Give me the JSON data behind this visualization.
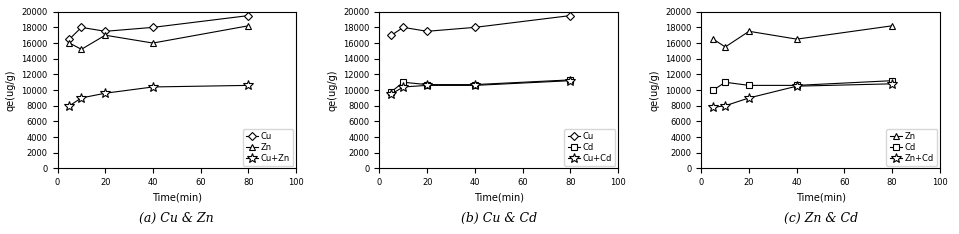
{
  "subplots": [
    {
      "caption": "(a) Cu & Zn",
      "xlabel": "Time(min)",
      "ylabel": "qe(ug/g)",
      "xlim": [
        0,
        100
      ],
      "ylim": [
        0,
        20000
      ],
      "yticks": [
        0,
        2000,
        4000,
        6000,
        8000,
        10000,
        12000,
        14000,
        16000,
        18000,
        20000
      ],
      "xticks": [
        0,
        20,
        40,
        60,
        80,
        100
      ],
      "series": [
        {
          "label": "Cu",
          "x": [
            5,
            10,
            20,
            40,
            80
          ],
          "y": [
            16500,
            18000,
            17500,
            18000,
            19500
          ],
          "marker": "D",
          "linestyle": "-"
        },
        {
          "label": "Zn",
          "x": [
            5,
            10,
            20,
            40,
            80
          ],
          "y": [
            16000,
            15200,
            17000,
            16000,
            18200
          ],
          "marker": "^",
          "linestyle": "-"
        },
        {
          "label": "Cu+Zn",
          "x": [
            5,
            10,
            20,
            40,
            80
          ],
          "y": [
            8000,
            9000,
            9600,
            10400,
            10600
          ],
          "marker": "*",
          "linestyle": "-"
        }
      ]
    },
    {
      "caption": "(b) Cu & Cd",
      "xlabel": "Time(min)",
      "ylabel": "qe(ug/g)",
      "xlim": [
        0,
        100
      ],
      "ylim": [
        0,
        20000
      ],
      "yticks": [
        0,
        2000,
        4000,
        6000,
        8000,
        10000,
        12000,
        14000,
        16000,
        18000,
        20000
      ],
      "xticks": [
        0,
        20,
        40,
        60,
        80,
        100
      ],
      "series": [
        {
          "label": "Cu",
          "x": [
            5,
            10,
            20,
            40,
            80
          ],
          "y": [
            17000,
            18000,
            17500,
            18000,
            19500
          ],
          "marker": "D",
          "linestyle": "-"
        },
        {
          "label": "Cd",
          "x": [
            5,
            10,
            20,
            40,
            80
          ],
          "y": [
            9800,
            11000,
            10700,
            10700,
            11300
          ],
          "marker": "s",
          "linestyle": "-"
        },
        {
          "label": "Cu+Cd",
          "x": [
            5,
            10,
            20,
            40,
            80
          ],
          "y": [
            9500,
            10400,
            10600,
            10600,
            11200
          ],
          "marker": "*",
          "linestyle": "-"
        }
      ]
    },
    {
      "caption": "(c) Zn & Cd",
      "xlabel": "Time(min)",
      "ylabel": "qe(ug/g)",
      "xlim": [
        0,
        100
      ],
      "ylim": [
        0,
        20000
      ],
      "yticks": [
        0,
        2000,
        4000,
        6000,
        8000,
        10000,
        12000,
        14000,
        16000,
        18000,
        20000
      ],
      "xticks": [
        0,
        20,
        40,
        60,
        80,
        100
      ],
      "series": [
        {
          "label": "Zn",
          "x": [
            5,
            10,
            20,
            40,
            80
          ],
          "y": [
            16500,
            15500,
            17500,
            16500,
            18200
          ],
          "marker": "^",
          "linestyle": "-"
        },
        {
          "label": "Cd",
          "x": [
            5,
            10,
            20,
            40,
            80
          ],
          "y": [
            10000,
            11000,
            10600,
            10600,
            11200
          ],
          "marker": "s",
          "linestyle": "-"
        },
        {
          "label": "Zn+Cd",
          "x": [
            5,
            10,
            20,
            40,
            80
          ],
          "y": [
            7800,
            8000,
            9000,
            10500,
            10800
          ],
          "marker": "*",
          "linestyle": "-"
        }
      ]
    }
  ],
  "figure_width": 9.59,
  "figure_height": 2.34,
  "dpi": 100,
  "line_color": "black",
  "caption_fontsize": 9,
  "axis_label_fontsize": 7,
  "tick_fontsize": 6,
  "legend_fontsize": 6
}
